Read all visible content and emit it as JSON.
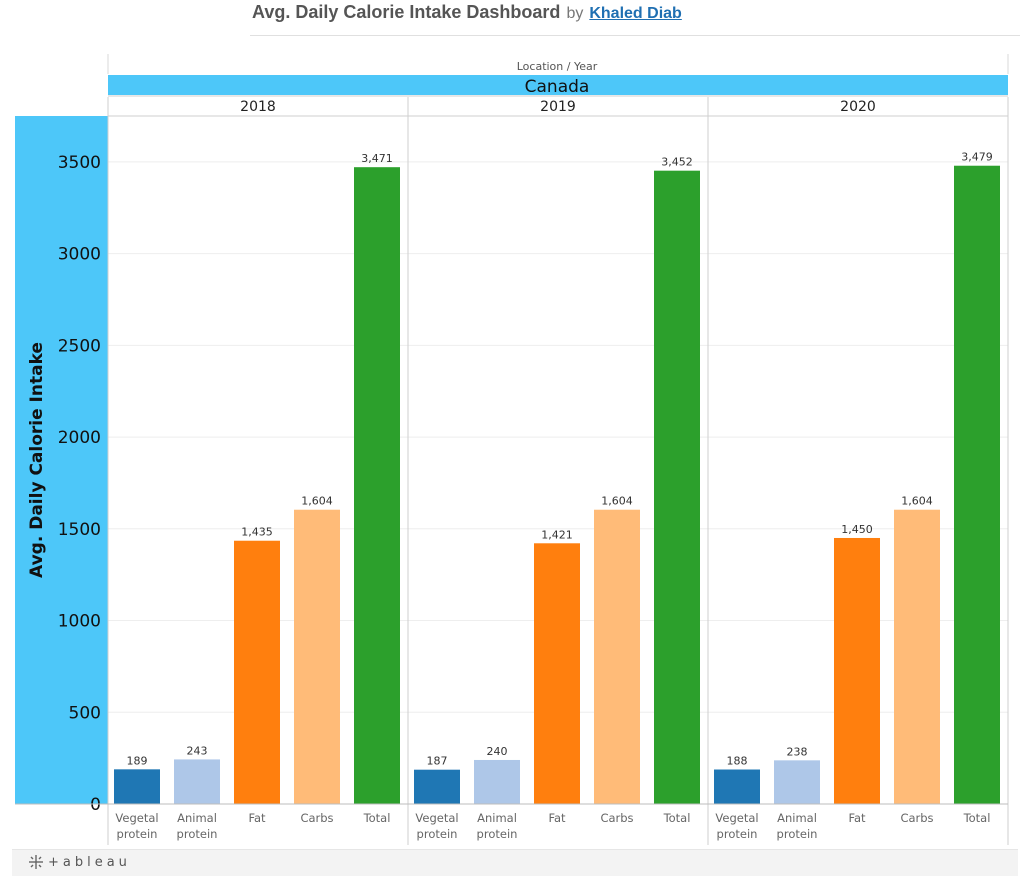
{
  "header": {
    "title": "Avg. Daily Calorie Intake Dashboard",
    "by": "by",
    "author": "Khaled Diab"
  },
  "footer": {
    "brand": "+ableau",
    "icon": "tableau-plus-icon"
  },
  "chart_data": {
    "type": "bar",
    "column_header": "Location / Year",
    "location": "Canada",
    "ylabel": "Avg. Daily Calorie Intake",
    "ylim": [
      0,
      3750
    ],
    "yticks": [
      0,
      500,
      1000,
      1500,
      2000,
      2500,
      3000,
      3500
    ],
    "categories": [
      [
        "Vegetal",
        "protein"
      ],
      [
        "Animal",
        "protein"
      ],
      [
        "Fat"
      ],
      [
        "Carbs"
      ],
      [
        "Total"
      ]
    ],
    "category_colors": [
      "#1f77b4",
      "#aec7e8",
      "#ff7f0e",
      "#ffbb78",
      "#2ca02c"
    ],
    "panels": [
      {
        "year": "2018",
        "values": [
          189,
          243,
          1435,
          1604,
          3471
        ],
        "labels": [
          "189",
          "243",
          "1,435",
          "1,604",
          "3,471"
        ]
      },
      {
        "year": "2019",
        "values": [
          187,
          240,
          1421,
          1604,
          3452
        ],
        "labels": [
          "187",
          "240",
          "1,421",
          "1,604",
          "3,452"
        ]
      },
      {
        "year": "2020",
        "values": [
          188,
          238,
          1450,
          1604,
          3479
        ],
        "labels": [
          "188",
          "238",
          "1,450",
          "1,604",
          "3,479"
        ]
      }
    ],
    "accent_color": "#4dc7f9",
    "grid": true,
    "legend": "none"
  }
}
